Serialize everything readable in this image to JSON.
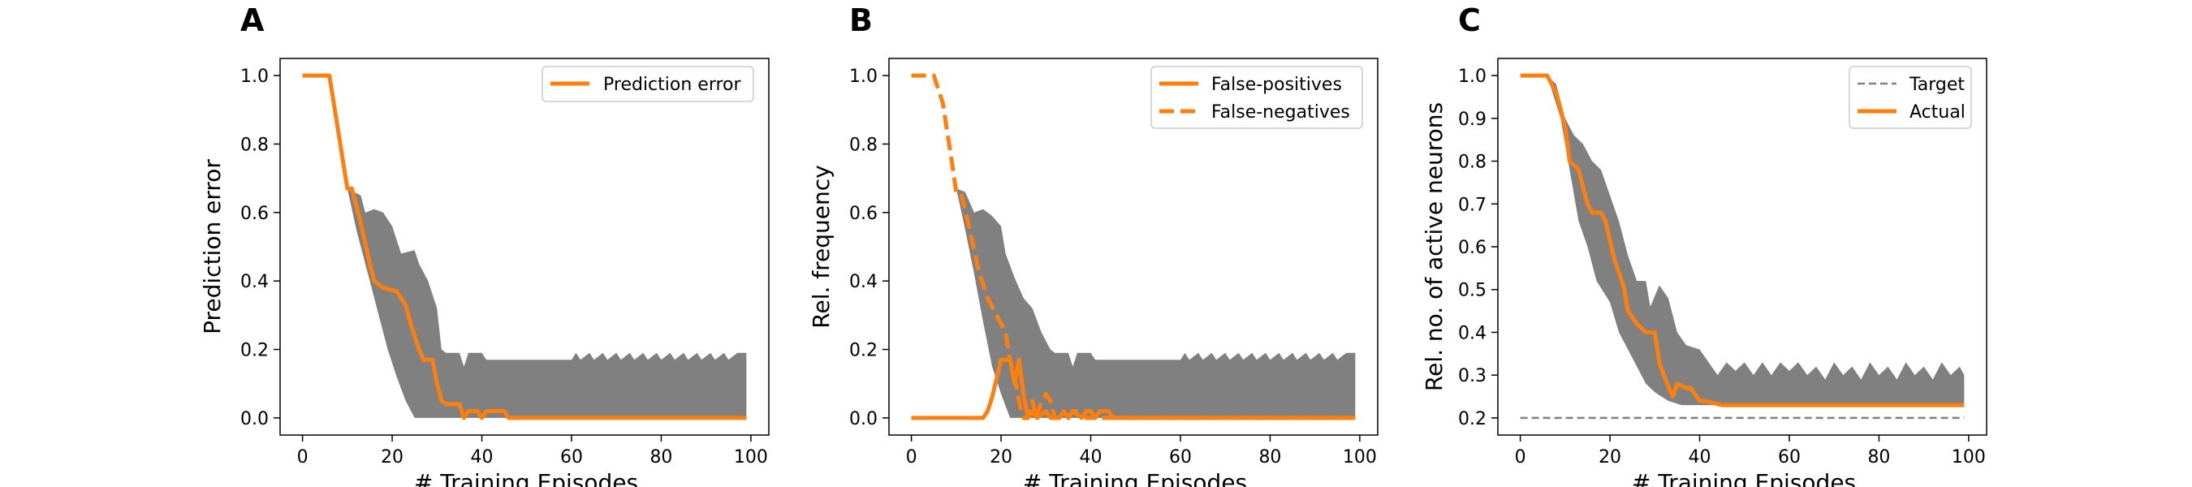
{
  "figure": {
    "panels": [
      "A",
      "B",
      "C"
    ]
  },
  "colors": {
    "accent": "#ff7f0e",
    "band": "#808080",
    "target": "#808080",
    "frame": "#000000"
  },
  "chart_data": [
    {
      "panel": "A",
      "type": "line",
      "xlabel": "# Training Episodes",
      "ylabel": "Prediction error",
      "xlim": [
        -5,
        104
      ],
      "ylim": [
        -0.05,
        1.05
      ],
      "xticks": [
        0,
        20,
        40,
        60,
        80,
        100
      ],
      "yticks": [
        0.0,
        0.2,
        0.4,
        0.6,
        0.8,
        1.0
      ],
      "legend": {
        "position": "top-right",
        "entries": [
          "Prediction error"
        ]
      },
      "series": [
        {
          "name": "Prediction error",
          "style": "solid",
          "points": [
            [
              0,
              1.0
            ],
            [
              6,
              1.0
            ],
            [
              10,
              0.67
            ],
            [
              11,
              0.67
            ],
            [
              13,
              0.57
            ],
            [
              15,
              0.45
            ],
            [
              16,
              0.4
            ],
            [
              18,
              0.38
            ],
            [
              21,
              0.37
            ],
            [
              23,
              0.33
            ],
            [
              24,
              0.28
            ],
            [
              26,
              0.2
            ],
            [
              27,
              0.17
            ],
            [
              29,
              0.17
            ],
            [
              30,
              0.1
            ],
            [
              31,
              0.05
            ],
            [
              32,
              0.04
            ],
            [
              35,
              0.04
            ],
            [
              36,
              0.0
            ],
            [
              37,
              0.02
            ],
            [
              39,
              0.02
            ],
            [
              40,
              0.0
            ],
            [
              41,
              0.02
            ],
            [
              45,
              0.02
            ],
            [
              46,
              0.0
            ],
            [
              99,
              0.0
            ]
          ]
        }
      ],
      "band": {
        "upper": [
          [
            10,
            0.67
          ],
          [
            13,
            0.65
          ],
          [
            14,
            0.6
          ],
          [
            16,
            0.61
          ],
          [
            18,
            0.6
          ],
          [
            20,
            0.56
          ],
          [
            22,
            0.48
          ],
          [
            25,
            0.49
          ],
          [
            26,
            0.45
          ],
          [
            28,
            0.4
          ],
          [
            30,
            0.32
          ],
          [
            31,
            0.2
          ],
          [
            32,
            0.19
          ],
          [
            35,
            0.19
          ],
          [
            36,
            0.15
          ],
          [
            37,
            0.19
          ],
          [
            40,
            0.19
          ],
          [
            41,
            0.17
          ],
          [
            60,
            0.17
          ],
          [
            61,
            0.19
          ],
          [
            62,
            0.17
          ],
          [
            64,
            0.19
          ],
          [
            65,
            0.17
          ],
          [
            67,
            0.19
          ],
          [
            68,
            0.17
          ],
          [
            70,
            0.19
          ],
          [
            71,
            0.17
          ],
          [
            73,
            0.19
          ],
          [
            74,
            0.17
          ],
          [
            76,
            0.19
          ],
          [
            77,
            0.17
          ],
          [
            79,
            0.19
          ],
          [
            80,
            0.17
          ],
          [
            82,
            0.19
          ],
          [
            83,
            0.17
          ],
          [
            85,
            0.19
          ],
          [
            86,
            0.17
          ],
          [
            88,
            0.19
          ],
          [
            89,
            0.17
          ],
          [
            91,
            0.19
          ],
          [
            92,
            0.17
          ],
          [
            94,
            0.19
          ],
          [
            95,
            0.17
          ],
          [
            97,
            0.19
          ],
          [
            99,
            0.19
          ]
        ],
        "lower": [
          [
            10,
            0.67
          ],
          [
            12,
            0.55
          ],
          [
            15,
            0.4
          ],
          [
            17,
            0.3
          ],
          [
            19,
            0.2
          ],
          [
            21,
            0.12
          ],
          [
            23,
            0.05
          ],
          [
            25,
            0.0
          ],
          [
            99,
            0.0
          ]
        ]
      }
    },
    {
      "panel": "B",
      "type": "line",
      "xlabel": "# Training Episodes",
      "ylabel": "Rel. frequency",
      "xlim": [
        -5,
        104
      ],
      "ylim": [
        -0.05,
        1.05
      ],
      "xticks": [
        0,
        20,
        40,
        60,
        80,
        100
      ],
      "yticks": [
        0.0,
        0.2,
        0.4,
        0.6,
        0.8,
        1.0
      ],
      "legend": {
        "position": "top-right",
        "entries": [
          "False-positives",
          "False-negatives"
        ]
      },
      "series": [
        {
          "name": "False-positives",
          "style": "solid",
          "points": [
            [
              0,
              0.0
            ],
            [
              16,
              0.0
            ],
            [
              17,
              0.02
            ],
            [
              18,
              0.06
            ],
            [
              20,
              0.17
            ],
            [
              22,
              0.17
            ],
            [
              23,
              0.1
            ],
            [
              24,
              0.17
            ],
            [
              25,
              0.07
            ],
            [
              26,
              0.0
            ],
            [
              27,
              0.02
            ],
            [
              28,
              0.0
            ],
            [
              30,
              0.02
            ],
            [
              31,
              0.0
            ],
            [
              33,
              0.0
            ],
            [
              34,
              0.02
            ],
            [
              35,
              0.0
            ],
            [
              36,
              0.02
            ],
            [
              38,
              0.0
            ],
            [
              39,
              0.02
            ],
            [
              40,
              0.02
            ],
            [
              41,
              0.0
            ],
            [
              42,
              0.02
            ],
            [
              44,
              0.02
            ],
            [
              45,
              0.0
            ],
            [
              99,
              0.0
            ]
          ]
        },
        {
          "name": "False-negatives",
          "style": "dashed",
          "points": [
            [
              0,
              1.0
            ],
            [
              5,
              1.0
            ],
            [
              7,
              0.92
            ],
            [
              9,
              0.75
            ],
            [
              10,
              0.66
            ],
            [
              11,
              0.66
            ],
            [
              13,
              0.55
            ],
            [
              15,
              0.43
            ],
            [
              17,
              0.35
            ],
            [
              19,
              0.3
            ],
            [
              21,
              0.25
            ],
            [
              22,
              0.17
            ],
            [
              23,
              0.12
            ],
            [
              24,
              0.05
            ],
            [
              25,
              0.0
            ],
            [
              26,
              0.0
            ],
            [
              27,
              0.05
            ],
            [
              28,
              0.0
            ],
            [
              29,
              0.05
            ],
            [
              30,
              0.07
            ],
            [
              31,
              0.05
            ],
            [
              32,
              0.0
            ],
            [
              35,
              0.0
            ],
            [
              36,
              0.02
            ],
            [
              38,
              0.02
            ],
            [
              39,
              0.0
            ],
            [
              99,
              0.0
            ]
          ]
        }
      ],
      "band": {
        "upper": [
          [
            10,
            0.67
          ],
          [
            12,
            0.66
          ],
          [
            14,
            0.6
          ],
          [
            16,
            0.61
          ],
          [
            18,
            0.59
          ],
          [
            20,
            0.56
          ],
          [
            21,
            0.48
          ],
          [
            23,
            0.41
          ],
          [
            25,
            0.35
          ],
          [
            27,
            0.32
          ],
          [
            29,
            0.25
          ],
          [
            31,
            0.2
          ],
          [
            32,
            0.19
          ],
          [
            35,
            0.19
          ],
          [
            36,
            0.15
          ],
          [
            37,
            0.19
          ],
          [
            40,
            0.19
          ],
          [
            41,
            0.17
          ],
          [
            60,
            0.17
          ],
          [
            61,
            0.19
          ],
          [
            62,
            0.17
          ],
          [
            64,
            0.19
          ],
          [
            65,
            0.17
          ],
          [
            67,
            0.19
          ],
          [
            68,
            0.17
          ],
          [
            70,
            0.19
          ],
          [
            71,
            0.17
          ],
          [
            73,
            0.19
          ],
          [
            74,
            0.17
          ],
          [
            76,
            0.19
          ],
          [
            77,
            0.17
          ],
          [
            79,
            0.19
          ],
          [
            80,
            0.17
          ],
          [
            82,
            0.19
          ],
          [
            83,
            0.17
          ],
          [
            85,
            0.19
          ],
          [
            86,
            0.17
          ],
          [
            88,
            0.19
          ],
          [
            89,
            0.17
          ],
          [
            91,
            0.19
          ],
          [
            92,
            0.17
          ],
          [
            94,
            0.19
          ],
          [
            95,
            0.17
          ],
          [
            97,
            0.19
          ],
          [
            99,
            0.19
          ]
        ],
        "lower": [
          [
            10,
            0.67
          ],
          [
            12,
            0.55
          ],
          [
            14,
            0.42
          ],
          [
            16,
            0.28
          ],
          [
            18,
            0.15
          ],
          [
            20,
            0.07
          ],
          [
            22,
            0.0
          ],
          [
            99,
            0.0
          ]
        ]
      }
    },
    {
      "panel": "C",
      "type": "line",
      "xlabel": "# Training Episodes",
      "ylabel": "Rel. no. of active neurons",
      "xlim": [
        -5,
        104
      ],
      "ylim": [
        0.16,
        1.04
      ],
      "xticks": [
        0,
        20,
        40,
        60,
        80,
        100
      ],
      "yticks": [
        0.2,
        0.3,
        0.4,
        0.5,
        0.6,
        0.7,
        0.8,
        0.9,
        1.0
      ],
      "legend": {
        "position": "top-right",
        "entries": [
          "Target",
          "Actual"
        ]
      },
      "series": [
        {
          "name": "Target",
          "style": "dashed-thin",
          "points": [
            [
              0,
              0.2
            ],
            [
              99,
              0.2
            ]
          ]
        },
        {
          "name": "Actual",
          "style": "solid",
          "points": [
            [
              0,
              1.0
            ],
            [
              6,
              1.0
            ],
            [
              8,
              0.96
            ],
            [
              10,
              0.88
            ],
            [
              11,
              0.8
            ],
            [
              13,
              0.78
            ],
            [
              15,
              0.7
            ],
            [
              16,
              0.68
            ],
            [
              18,
              0.68
            ],
            [
              19,
              0.66
            ],
            [
              21,
              0.57
            ],
            [
              23,
              0.51
            ],
            [
              24,
              0.45
            ],
            [
              26,
              0.42
            ],
            [
              28,
              0.4
            ],
            [
              30,
              0.4
            ],
            [
              31,
              0.33
            ],
            [
              32,
              0.3
            ],
            [
              34,
              0.25
            ],
            [
              35,
              0.28
            ],
            [
              37,
              0.27
            ],
            [
              38,
              0.27
            ],
            [
              40,
              0.24
            ],
            [
              41,
              0.24
            ],
            [
              45,
              0.23
            ],
            [
              99,
              0.23
            ]
          ]
        }
      ],
      "band": {
        "upper": [
          [
            6,
            1.0
          ],
          [
            8,
            0.98
          ],
          [
            10,
            0.9
          ],
          [
            12,
            0.86
          ],
          [
            14,
            0.84
          ],
          [
            16,
            0.8
          ],
          [
            18,
            0.78
          ],
          [
            20,
            0.72
          ],
          [
            22,
            0.66
          ],
          [
            24,
            0.58
          ],
          [
            26,
            0.52
          ],
          [
            28,
            0.52
          ],
          [
            29,
            0.46
          ],
          [
            31,
            0.51
          ],
          [
            33,
            0.48
          ],
          [
            35,
            0.4
          ],
          [
            37,
            0.37
          ],
          [
            40,
            0.36
          ],
          [
            42,
            0.33
          ],
          [
            44,
            0.3
          ],
          [
            46,
            0.33
          ],
          [
            48,
            0.31
          ],
          [
            50,
            0.33
          ],
          [
            52,
            0.3
          ],
          [
            54,
            0.33
          ],
          [
            56,
            0.3
          ],
          [
            58,
            0.33
          ],
          [
            60,
            0.31
          ],
          [
            62,
            0.33
          ],
          [
            64,
            0.3
          ],
          [
            66,
            0.32
          ],
          [
            68,
            0.29
          ],
          [
            70,
            0.33
          ],
          [
            72,
            0.3
          ],
          [
            74,
            0.32
          ],
          [
            76,
            0.29
          ],
          [
            78,
            0.33
          ],
          [
            80,
            0.3
          ],
          [
            82,
            0.32
          ],
          [
            84,
            0.29
          ],
          [
            86,
            0.33
          ],
          [
            88,
            0.3
          ],
          [
            90,
            0.32
          ],
          [
            92,
            0.29
          ],
          [
            94,
            0.33
          ],
          [
            96,
            0.3
          ],
          [
            98,
            0.32
          ],
          [
            99,
            0.3
          ]
        ],
        "lower": [
          [
            6,
            1.0
          ],
          [
            9,
            0.9
          ],
          [
            11,
            0.78
          ],
          [
            13,
            0.66
          ],
          [
            15,
            0.6
          ],
          [
            17,
            0.52
          ],
          [
            20,
            0.47
          ],
          [
            22,
            0.4
          ],
          [
            24,
            0.36
          ],
          [
            26,
            0.32
          ],
          [
            28,
            0.28
          ],
          [
            30,
            0.26
          ],
          [
            33,
            0.24
          ],
          [
            36,
            0.23
          ],
          [
            99,
            0.23
          ]
        ]
      }
    }
  ]
}
